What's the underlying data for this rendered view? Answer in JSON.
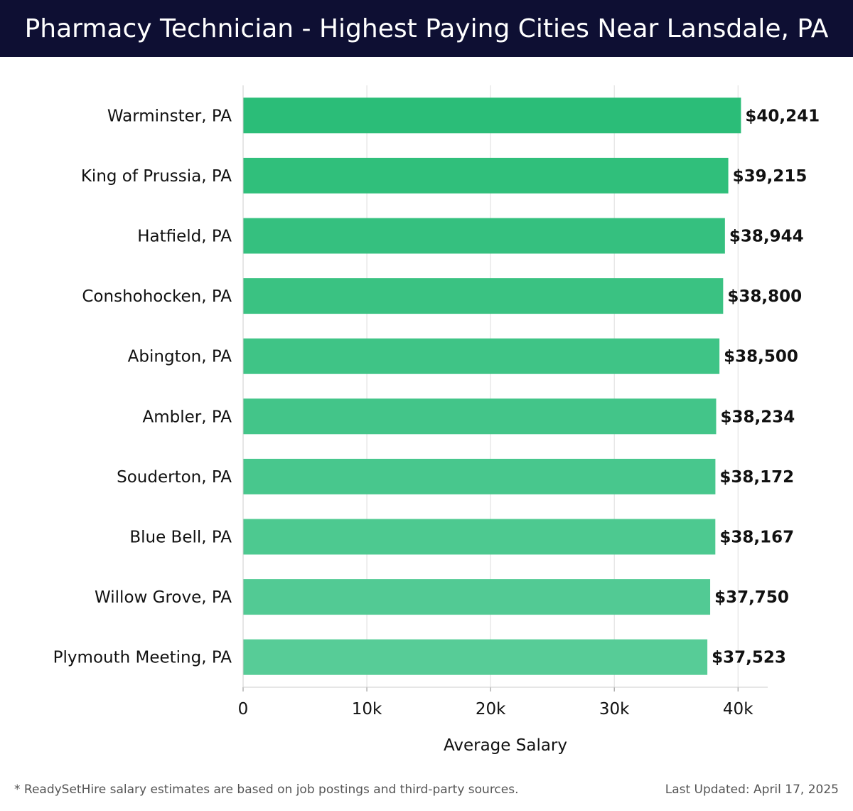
{
  "header": {
    "title": "Pharmacy Technician - Highest Paying Cities Near Lansdale, PA"
  },
  "chart_data": {
    "type": "bar",
    "orientation": "horizontal",
    "categories": [
      "Warminster, PA",
      "King of Prussia, PA",
      "Hatfield, PA",
      "Conshohocken, PA",
      "Abington, PA",
      "Ambler, PA",
      "Souderton, PA",
      "Blue Bell, PA",
      "Willow Grove, PA",
      "Plymouth Meeting, PA"
    ],
    "values": [
      40241,
      39215,
      38944,
      38800,
      38500,
      38234,
      38172,
      38167,
      37750,
      37523
    ],
    "value_labels": [
      "$40,241",
      "$39,215",
      "$38,944",
      "$38,800",
      "$38,500",
      "$38,234",
      "$38,172",
      "$38,167",
      "$37,750",
      "$37,523"
    ],
    "xlabel": "Average Salary",
    "ylabel": "",
    "xlim": [
      0,
      42400
    ],
    "x_ticks": [
      0,
      10000,
      20000,
      30000,
      40000
    ],
    "x_tick_labels": [
      "0",
      "10k",
      "20k",
      "30k",
      "40k"
    ],
    "grid": true,
    "bar_color_top": "#2bbd78",
    "bar_color_bottom": "#57cc97"
  },
  "footer": {
    "note": "* ReadySetHire salary estimates are based on job postings and third-party sources.",
    "updated": "Last Updated: April 17, 2025"
  }
}
